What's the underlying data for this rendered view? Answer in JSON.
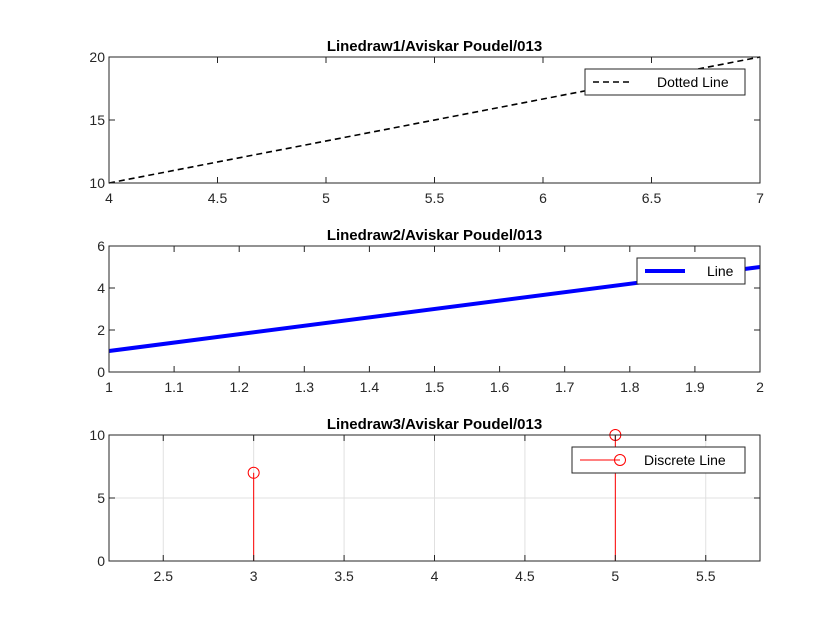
{
  "chart_data": [
    {
      "type": "line",
      "title": "Linedraw1/Aviskar Poudel/013",
      "xlabel": "",
      "ylabel": "",
      "xlim": [
        4,
        7
      ],
      "ylim": [
        10,
        20
      ],
      "xticks": [
        "4",
        "4.5",
        "5",
        "5.5",
        "6",
        "6.5",
        "7"
      ],
      "yticks": [
        "10",
        "15",
        "20"
      ],
      "grid": false,
      "legend_position": "top-right",
      "series": [
        {
          "name": "Dotted Line",
          "style": "dashed",
          "color": "#000000",
          "x": [
            4,
            7
          ],
          "y": [
            10,
            20
          ]
        }
      ]
    },
    {
      "type": "line",
      "title": "Linedraw2/Aviskar Poudel/013",
      "xlabel": "",
      "ylabel": "",
      "xlim": [
        1,
        2
      ],
      "ylim": [
        0,
        6
      ],
      "xticks": [
        "1",
        "1.1",
        "1.2",
        "1.3",
        "1.4",
        "1.5",
        "1.6",
        "1.7",
        "1.8",
        "1.9",
        "2"
      ],
      "yticks": [
        "0",
        "2",
        "4",
        "6"
      ],
      "grid": false,
      "legend_position": "top-right",
      "series": [
        {
          "name": "Line",
          "style": "solid-thick",
          "color": "#0000ff",
          "x": [
            1,
            2
          ],
          "y": [
            1,
            5
          ]
        }
      ]
    },
    {
      "type": "stem",
      "title": "Linedraw3/Aviskar Poudel/013",
      "xlabel": "",
      "ylabel": "",
      "xlim": [
        2.2,
        5.8
      ],
      "ylim": [
        0,
        10
      ],
      "xticks": [
        "2.5",
        "3",
        "3.5",
        "4",
        "4.5",
        "5",
        "5.5"
      ],
      "yticks": [
        "0",
        "5",
        "10"
      ],
      "grid": true,
      "legend_position": "top-right",
      "series": [
        {
          "name": "Discrete Line",
          "style": "stem-circle",
          "color": "#ff0000",
          "x": [
            3,
            5
          ],
          "y": [
            7,
            10
          ]
        }
      ]
    }
  ]
}
